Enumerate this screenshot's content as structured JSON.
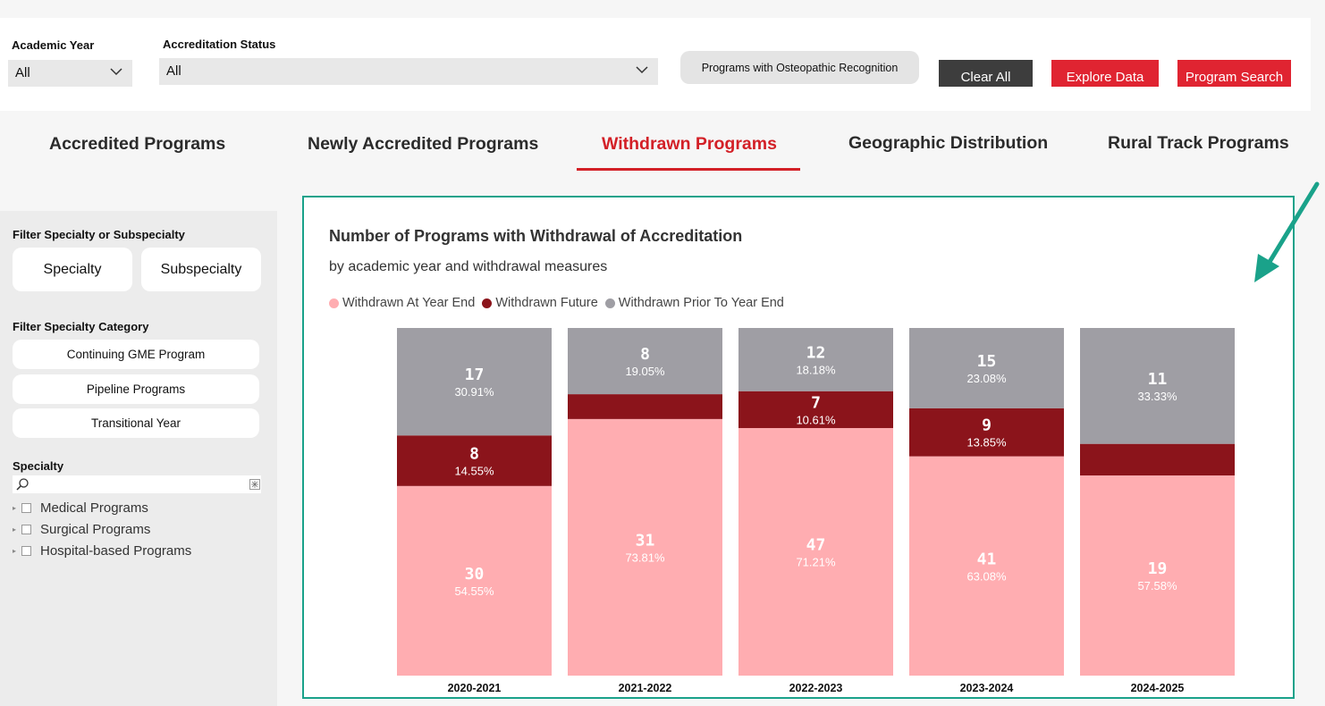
{
  "filters": {
    "academic_year": {
      "label": "Academic Year",
      "value": "All"
    },
    "accreditation_status": {
      "label": "Accreditation Status",
      "value": "All"
    },
    "osteo_button": "Programs with Osteopathic Recognition",
    "clear_all": "Clear All",
    "explore_data": "Explore Data",
    "program_search": "Program Search"
  },
  "tabs": [
    {
      "label": "Accredited Programs"
    },
    {
      "label": "Newly Accredited Programs"
    },
    {
      "label": "Withdrawn Programs"
    },
    {
      "label": "Geographic Distribution"
    },
    {
      "label": "Rural Track Programs"
    }
  ],
  "sidebar": {
    "filter_specialty_title": "Filter Specialty or Subspecialty",
    "specialty_btn": "Specialty",
    "subspecialty_btn": "Subspecialty",
    "category_title": "Filter Specialty Category",
    "categories": [
      "Continuing GME Program",
      "Pipeline Programs",
      "Transitional Year"
    ],
    "specialty_title": "Specialty",
    "tree": [
      "Medical Programs",
      "Surgical Programs",
      "Hospital-based Programs"
    ]
  },
  "colors": {
    "accent": "#d32027",
    "frame": "#1aa28a",
    "year_end": "#ffadb1",
    "future": "#8b141b",
    "prior": "#9f9ea4"
  },
  "chart_data": {
    "type": "bar",
    "stacked": "100%",
    "title": "Number of Programs with Withdrawal of Accreditation",
    "subtitle": "by academic year and withdrawal measures",
    "categories": [
      "2020-2021",
      "2021-2022",
      "2022-2023",
      "2023-2024",
      "2024-2025"
    ],
    "legend_position": "top-left",
    "series": [
      {
        "name": "Withdrawn At Year End",
        "values": [
          30,
          31,
          47,
          41,
          19
        ],
        "percent_labels": [
          "54.55%",
          "73.81%",
          "71.21%",
          "63.08%",
          "57.58%"
        ]
      },
      {
        "name": "Withdrawn Future",
        "values": [
          8,
          3,
          7,
          9,
          3
        ],
        "percent_labels": [
          "14.55%",
          "",
          "10.61%",
          "13.85%",
          ""
        ]
      },
      {
        "name": "Withdrawn Prior To Year End",
        "values": [
          17,
          8,
          12,
          15,
          11
        ],
        "percent_labels": [
          "30.91%",
          "19.05%",
          "18.18%",
          "23.08%",
          "33.33%"
        ]
      }
    ],
    "show_value_labels": [
      [
        true,
        true,
        true,
        true,
        true
      ],
      [
        true,
        false,
        true,
        true,
        false
      ],
      [
        true,
        true,
        true,
        true,
        true
      ]
    ]
  }
}
